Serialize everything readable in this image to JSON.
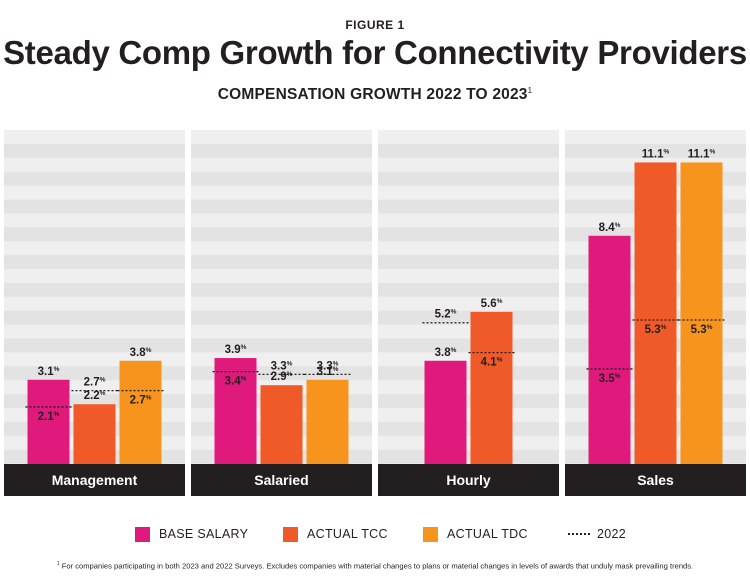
{
  "figure_label": "FIGURE 1",
  "chart_data": {
    "type": "bar",
    "title": "Steady Comp Growth for Connectivity Providers",
    "subtitle": "COMPENSATION GROWTH 2022 TO 2023",
    "subtitle_footnote_mark": "1",
    "xlabel": "",
    "ylabel": "",
    "ylim": [
      0,
      12
    ],
    "grid": true,
    "value_suffix": "%",
    "groups": [
      {
        "name": "Management",
        "bars": [
          {
            "series": "BASE SALARY",
            "value_2023": 3.1,
            "value_2022": 2.1
          },
          {
            "series": "ACTUAL TCC",
            "value_2023": 2.2,
            "value_2022": 2.7
          },
          {
            "series": "ACTUAL TDC",
            "value_2023": 3.8,
            "value_2022": 2.7
          }
        ]
      },
      {
        "name": "Salaried",
        "bars": [
          {
            "series": "BASE SALARY",
            "value_2023": 3.9,
            "value_2022": 3.4
          },
          {
            "series": "ACTUAL TCC",
            "value_2023": 2.9,
            "value_2022": 3.3
          },
          {
            "series": "ACTUAL TDC",
            "value_2023": 3.1,
            "value_2022": 3.3
          }
        ]
      },
      {
        "name": "Hourly",
        "bars": [
          {
            "series": "BASE SALARY",
            "value_2023": 3.8,
            "value_2022": 5.2
          },
          {
            "series": "ACTUAL TCC",
            "value_2023": 5.6,
            "value_2022": 4.1
          }
        ]
      },
      {
        "name": "Sales",
        "bars": [
          {
            "series": "BASE SALARY",
            "value_2023": 8.4,
            "value_2022": 3.5
          },
          {
            "series": "ACTUAL TCC",
            "value_2023": 11.1,
            "value_2022": 5.3
          },
          {
            "series": "ACTUAL TDC",
            "value_2023": 11.1,
            "value_2022": 5.3
          }
        ]
      }
    ],
    "series": [
      {
        "name": "BASE SALARY",
        "color": "#e0197d"
      },
      {
        "name": "ACTUAL TCC",
        "color": "#f05a28"
      },
      {
        "name": "ACTUAL TDC",
        "color": "#f7941d"
      }
    ],
    "reference_series": {
      "name": "2022",
      "style": "dotted"
    },
    "legend_position": "bottom"
  },
  "colors": {
    "panel_background": "#efefef",
    "panel_stripe": "#e3e3e3",
    "label_bar": "#231f20",
    "label_text": "#ffffff"
  },
  "footnote": {
    "mark": "1",
    "text": " For companies participating in both 2023 and 2022 Surveys. Excludes companies with material changes to plans or material changes in levels of awards that unduly mask prevailing trends."
  }
}
